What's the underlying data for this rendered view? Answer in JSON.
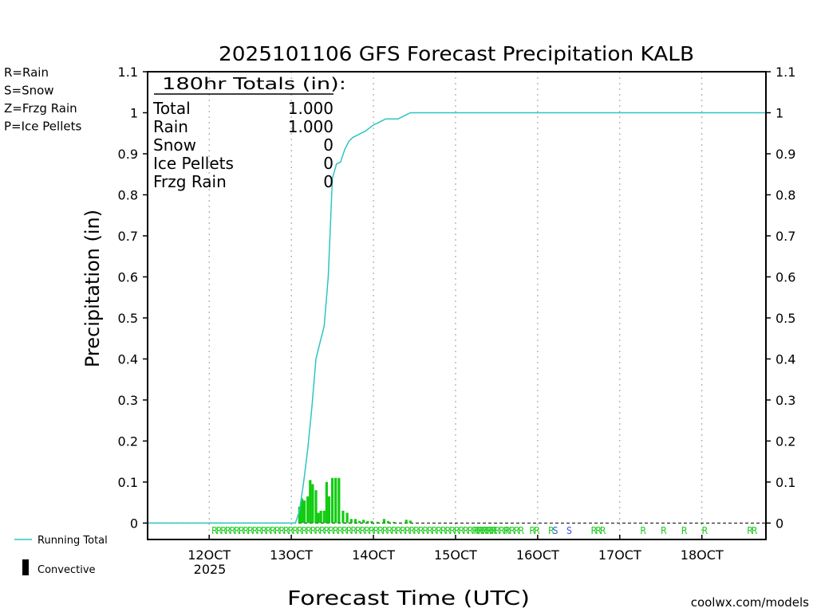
{
  "chart_data": {
    "type": "bar",
    "title": "2025101106 GFS Forecast Precipitation KALB",
    "xlabel": "Forecast Time (UTC)",
    "ylabel": "Precipitation (in)",
    "ylim": [
      -0.04,
      1.1
    ],
    "xlim": [
      112.5,
      187.8
    ],
    "yticks": [
      {
        "v": 0,
        "label": "0"
      },
      {
        "v": 0.1,
        "label": "0.1"
      },
      {
        "v": 0.2,
        "label": "0.2"
      },
      {
        "v": 0.3,
        "label": "0.3"
      },
      {
        "v": 0.4,
        "label": "0.4"
      },
      {
        "v": 0.5,
        "label": "0.5"
      },
      {
        "v": 0.6,
        "label": "0.6"
      },
      {
        "v": 0.7,
        "label": "0.7"
      },
      {
        "v": 0.8,
        "label": "0.8"
      },
      {
        "v": 0.9,
        "label": "0.9"
      },
      {
        "v": 1.0,
        "label": "1"
      },
      {
        "v": 1.1,
        "label": "1.1"
      }
    ],
    "xticks": [
      {
        "v": 120,
        "label": "12OCT"
      },
      {
        "v": 130,
        "label": "13OCT"
      },
      {
        "v": 140,
        "label": "14OCT"
      },
      {
        "v": 150,
        "label": "15OCT"
      },
      {
        "v": 160,
        "label": "16OCT"
      },
      {
        "v": 170,
        "label": "17OCT"
      },
      {
        "v": 180,
        "label": "18OCT"
      }
    ],
    "year_label": "2025",
    "bars": [
      {
        "x": 131.0,
        "v": 0.04
      },
      {
        "x": 131.3,
        "v": 0.06
      },
      {
        "x": 131.6,
        "v": 0.055
      },
      {
        "x": 132.0,
        "v": 0.065
      },
      {
        "x": 132.3,
        "v": 0.105
      },
      {
        "x": 132.6,
        "v": 0.095
      },
      {
        "x": 133.0,
        "v": 0.08
      },
      {
        "x": 133.3,
        "v": 0.025
      },
      {
        "x": 133.6,
        "v": 0.03
      },
      {
        "x": 134.0,
        "v": 0.03
      },
      {
        "x": 134.3,
        "v": 0.1
      },
      {
        "x": 134.6,
        "v": 0.065
      },
      {
        "x": 135.0,
        "v": 0.11
      },
      {
        "x": 135.4,
        "v": 0.11
      },
      {
        "x": 135.8,
        "v": 0.11
      },
      {
        "x": 136.3,
        "v": 0.03
      },
      {
        "x": 136.8,
        "v": 0.025
      },
      {
        "x": 137.3,
        "v": 0.01
      },
      {
        "x": 137.8,
        "v": 0.01
      },
      {
        "x": 138.3,
        "v": 0.005
      },
      {
        "x": 138.8,
        "v": 0.008
      },
      {
        "x": 139.3,
        "v": 0.005
      },
      {
        "x": 139.8,
        "v": 0.005
      },
      {
        "x": 140.5,
        "v": 0.003
      },
      {
        "x": 141.3,
        "v": 0.01
      },
      {
        "x": 141.8,
        "v": 0.005
      },
      {
        "x": 142.5,
        "v": 0.003
      },
      {
        "x": 144.0,
        "v": 0.008
      },
      {
        "x": 144.5,
        "v": 0.006
      }
    ],
    "series": [
      {
        "name": "Running Total",
        "color": "#2ec4c4",
        "x": [
          112.5,
          130.5,
          131.0,
          131.5,
          132.0,
          132.5,
          133.0,
          133.5,
          134.0,
          134.5,
          135.0,
          135.5,
          136.0,
          136.5,
          137.0,
          137.5,
          138.0,
          138.5,
          139.0,
          140.0,
          140.5,
          141.0,
          141.5,
          142.0,
          143.0,
          143.5,
          144.0,
          144.5,
          145.0,
          150,
          160,
          170,
          180,
          187.8
        ],
        "y": [
          0,
          0,
          0.03,
          0.1,
          0.18,
          0.28,
          0.4,
          0.44,
          0.48,
          0.6,
          0.84,
          0.875,
          0.88,
          0.91,
          0.93,
          0.94,
          0.945,
          0.95,
          0.955,
          0.97,
          0.975,
          0.98,
          0.985,
          0.985,
          0.985,
          0.99,
          0.995,
          1.0,
          1.0,
          1.0,
          1.0,
          1.0,
          1.0,
          1.0
        ]
      }
    ],
    "ptype_markers": [
      {
        "x": 120.3,
        "label": "RRRRRRRRRRRRRRRRRRRRRRRRRRRRRRRRRRRRRRRRRRRRRRRRRRRRRRRRRRRRRRRRRR",
        "color": "#22cc22"
      },
      {
        "x": 152.2,
        "label": "RRRRR",
        "color": "#22cc22"
      },
      {
        "x": 156.0,
        "label": "RRRR",
        "color": "#22cc22"
      },
      {
        "x": 159.0,
        "label": "RR",
        "color": "#22cc22"
      },
      {
        "x": 161.3,
        "label": "R",
        "color": "#22cc22"
      },
      {
        "x": 161.8,
        "label": "S",
        "color": "#3355ee"
      },
      {
        "x": 163.5,
        "label": "S",
        "color": "#3355ee"
      },
      {
        "x": 166.5,
        "label": "RRR",
        "color": "#22cc22"
      },
      {
        "x": 172.5,
        "label": "R",
        "color": "#22cc22"
      },
      {
        "x": 175.0,
        "label": "R",
        "color": "#22cc22"
      },
      {
        "x": 177.5,
        "label": "R",
        "color": "#22cc22"
      },
      {
        "x": 180.0,
        "label": "R",
        "color": "#22cc22"
      },
      {
        "x": 185.5,
        "label": "RR",
        "color": "#22cc22"
      }
    ],
    "totals": {
      "header": "180hr Totals (in):",
      "rows": [
        {
          "name": "Total",
          "value": "1.000"
        },
        {
          "name": "Rain",
          "value": "1.000"
        },
        {
          "name": "Snow",
          "value": "0"
        },
        {
          "name": "Ice Pellets",
          "value": "0"
        },
        {
          "name": "Frzg Rain",
          "value": "0"
        }
      ]
    },
    "ptype_legend": [
      {
        "label": "R=Rain",
        "color": "#22cc22"
      },
      {
        "label": "S=Snow",
        "color": "#3355ee"
      },
      {
        "label": "Z=Frzg Rain",
        "color": "#ee8833"
      },
      {
        "label": "P=Ice Pellets",
        "color": "#ee2288"
      }
    ],
    "legend": {
      "running_total": "Running Total",
      "convective": "Convective"
    },
    "colors": {
      "bar": "#11cc11",
      "line": "#2ec4c4",
      "grid": "#999999"
    },
    "source": "coolwx.com/models",
    "source_color": "#cc2222"
  }
}
